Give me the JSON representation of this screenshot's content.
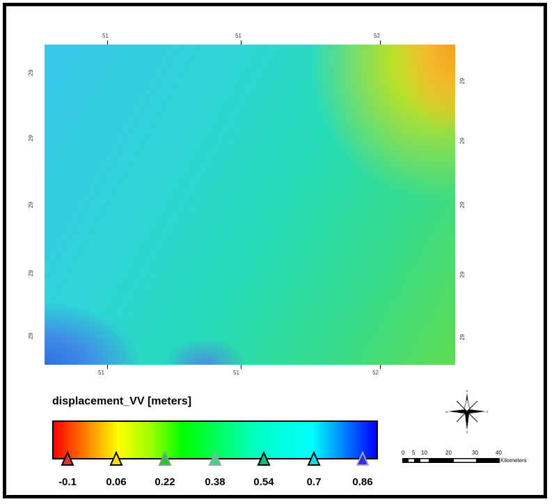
{
  "map": {
    "top_ticks": [
      "51",
      "51",
      "52"
    ],
    "bottom_ticks": [
      "51",
      "51",
      "52"
    ],
    "left_ticks": [
      "29",
      "29",
      "29",
      "29",
      "29"
    ],
    "right_ticks": [
      "29",
      "29",
      "29",
      "29",
      "29"
    ]
  },
  "legend": {
    "title": "displacement_VV [meters]",
    "stops": [
      {
        "label": "-0.1",
        "color": "#ff0000"
      },
      {
        "label": "0.06",
        "color": "#ffff00"
      },
      {
        "label": "0.22",
        "color": "#00d040"
      },
      {
        "label": "0.38",
        "color": "#40e090"
      },
      {
        "label": "0.54",
        "color": "#00c080"
      },
      {
        "label": "0.7",
        "color": "#00e0e0"
      },
      {
        "label": "0.86",
        "color": "#3030e0"
      }
    ],
    "min_color": "#ff0000",
    "max_color": "#0000ff"
  },
  "compass": {
    "n": "N",
    "s": "S",
    "e": "E",
    "w": "W"
  },
  "scale": {
    "labels": [
      "0",
      "5",
      "10",
      "20",
      "30",
      "40"
    ],
    "unit": "Kilometers"
  }
}
